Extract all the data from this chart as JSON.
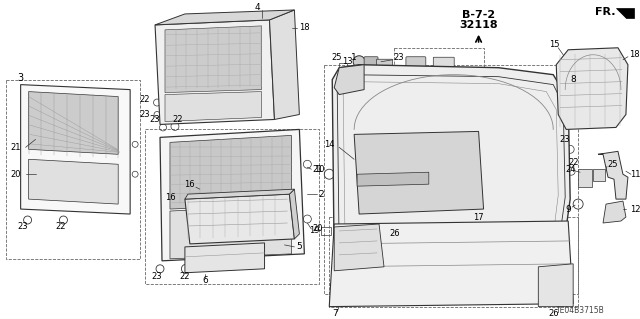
{
  "bg_color": "#ffffff",
  "diagram_id": "B-7-2\n32118",
  "part_code": "TE04B3715B",
  "fig_width": 6.4,
  "fig_height": 3.19,
  "dpi": 100,
  "line_color": "#333333",
  "dash_color": "#666666"
}
